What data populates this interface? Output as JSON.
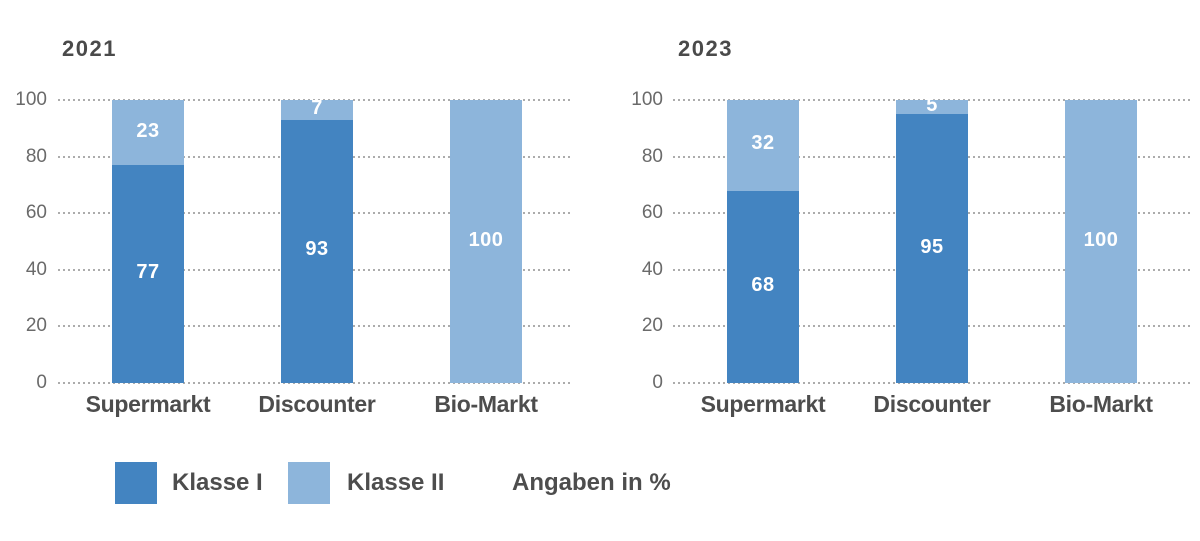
{
  "chart_data": [
    {
      "type": "bar",
      "variant": "stacked-vertical",
      "title": "2021",
      "categories": [
        "Supermarkt",
        "Discounter",
        "Bio-Markt"
      ],
      "series": [
        {
          "name": "Klasse I",
          "color": "#4384C1",
          "values": [
            77,
            93,
            0
          ]
        },
        {
          "name": "Klasse II",
          "color": "#8DB5DB",
          "values": [
            23,
            7,
            100
          ]
        }
      ],
      "value_labels": "white, centered in segment, zero values hidden",
      "ylim": [
        0,
        100
      ],
      "yticks": [
        0,
        20,
        40,
        60,
        80,
        100
      ],
      "grid": "horizontal dotted gray",
      "legend_position": "below"
    },
    {
      "type": "bar",
      "variant": "stacked-vertical",
      "title": "2023",
      "categories": [
        "Supermarkt",
        "Discounter",
        "Bio-Markt"
      ],
      "series": [
        {
          "name": "Klasse I",
          "color": "#4384C1",
          "values": [
            68,
            95,
            0
          ]
        },
        {
          "name": "Klasse II",
          "color": "#8DB5DB",
          "values": [
            32,
            5,
            100
          ]
        }
      ],
      "value_labels": "white, centered in segment, zero values hidden",
      "ylim": [
        0,
        100
      ],
      "yticks": [
        0,
        20,
        40,
        60,
        80,
        100
      ],
      "grid": "horizontal dotted gray",
      "legend_position": "below"
    }
  ],
  "legend": {
    "items": [
      {
        "label": "Klasse I",
        "color": "#4384C1"
      },
      {
        "label": "Klasse II",
        "color": "#8DB5DB"
      }
    ],
    "note": "Angaben in %"
  },
  "colors": {
    "klasse_i": "#4384C1",
    "klasse_ii": "#8DB5DB",
    "title_text": "#4a4a4a",
    "tick_text": "#6a6a6a",
    "category_text": "#4d4d4d",
    "gridline": "#acacac",
    "background": "#ffffff"
  }
}
